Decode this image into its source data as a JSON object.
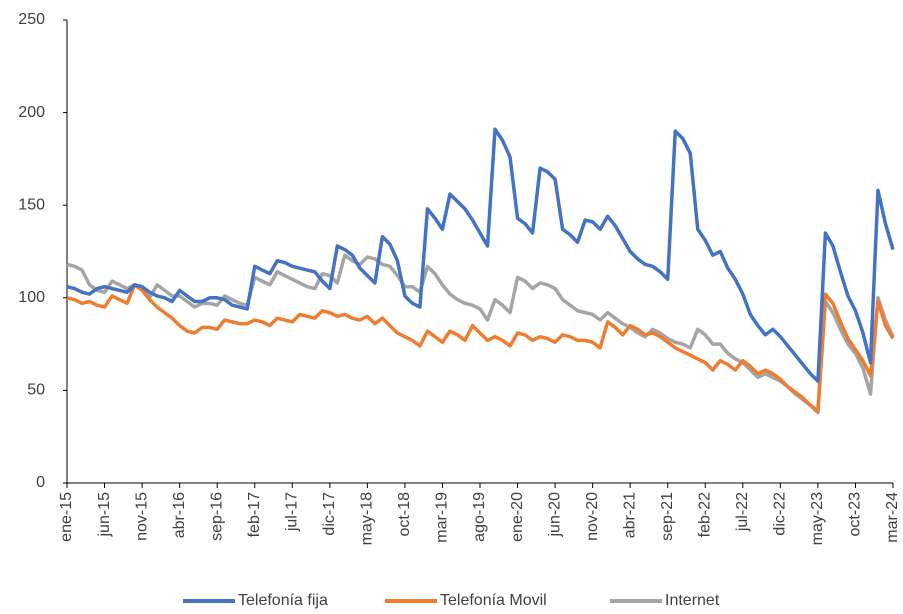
{
  "chart_data": {
    "type": "line",
    "categories": [
      "ene-15",
      null,
      null,
      null,
      null,
      "jun-15",
      null,
      null,
      null,
      null,
      "nov-15",
      null,
      null,
      null,
      null,
      "abr-16",
      null,
      null,
      null,
      null,
      "sep-16",
      null,
      null,
      null,
      null,
      "feb-17",
      null,
      null,
      null,
      null,
      "jul-17",
      null,
      null,
      null,
      null,
      "dic-17",
      null,
      null,
      null,
      null,
      "may-18",
      null,
      null,
      null,
      null,
      "oct-18",
      null,
      null,
      null,
      null,
      "mar-19",
      null,
      null,
      null,
      null,
      "ago-19",
      null,
      null,
      null,
      null,
      "ene-20",
      null,
      null,
      null,
      null,
      "jun-20",
      null,
      null,
      null,
      null,
      "nov-20",
      null,
      null,
      null,
      null,
      "abr-21",
      null,
      null,
      null,
      null,
      "sep-21",
      null,
      null,
      null,
      null,
      "feb-22",
      null,
      null,
      null,
      null,
      "jul-22",
      null,
      null,
      null,
      null,
      "dic-22",
      null,
      null,
      null,
      null,
      "may-23",
      null,
      null,
      null,
      null,
      "oct-23",
      null,
      null,
      null,
      null,
      "mar-24"
    ],
    "series": [
      {
        "name": "Telefonía fija",
        "color": "#4472c4",
        "values": [
          106,
          105,
          103,
          102,
          105,
          106,
          105,
          104,
          103,
          107,
          106,
          103,
          101,
          100,
          98,
          104,
          101,
          98,
          98,
          100,
          100,
          99,
          96,
          95,
          94,
          117,
          115,
          113,
          120,
          119,
          117,
          116,
          115,
          114,
          109,
          105,
          128,
          126,
          123,
          116,
          112,
          108,
          133,
          129,
          120,
          101,
          97,
          95,
          148,
          143,
          137,
          156,
          152,
          148,
          142,
          135,
          128,
          191,
          185,
          176,
          143,
          140,
          135,
          170,
          168,
          164,
          137,
          134,
          130,
          142,
          141,
          137,
          144,
          139,
          132,
          125,
          121,
          118,
          117,
          114,
          110,
          190,
          186,
          178,
          137,
          131,
          123,
          125,
          116,
          110,
          102,
          91,
          85,
          80,
          83,
          79,
          74,
          69,
          64,
          59,
          55,
          135,
          128,
          114,
          101,
          93,
          81,
          65,
          158,
          140,
          126
        ]
      },
      {
        "name": "Telefonía Movil",
        "color": "#ed7d31",
        "values": [
          100,
          99,
          97,
          98,
          96,
          95,
          101,
          99,
          97,
          107,
          104,
          99,
          95,
          92,
          89,
          85,
          82,
          81,
          84,
          84,
          83,
          88,
          87,
          86,
          86,
          88,
          87,
          85,
          89,
          88,
          87,
          91,
          90,
          89,
          93,
          92,
          90,
          91,
          89,
          88,
          90,
          86,
          89,
          85,
          81,
          79,
          77,
          74,
          82,
          79,
          76,
          82,
          80,
          77,
          85,
          81,
          77,
          79,
          77,
          74,
          81,
          80,
          77,
          79,
          78,
          76,
          80,
          79,
          77,
          77,
          76,
          73,
          87,
          84,
          80,
          85,
          83,
          80,
          81,
          79,
          76,
          73,
          71,
          69,
          67,
          65,
          61,
          66,
          64,
          61,
          66,
          63,
          59,
          61,
          59,
          56,
          52,
          49,
          46,
          42,
          39,
          102,
          97,
          87,
          78,
          72,
          66,
          58,
          98,
          85,
          78
        ]
      },
      {
        "name": "Internet",
        "color": "#a5a5a5",
        "values": [
          118,
          117,
          115,
          107,
          104,
          103,
          109,
          107,
          105,
          107,
          105,
          100,
          107,
          104,
          101,
          101,
          98,
          95,
          97,
          97,
          96,
          101,
          99,
          97,
          96,
          111,
          109,
          107,
          114,
          112,
          110,
          108,
          106,
          105,
          113,
          112,
          108,
          123,
          120,
          118,
          122,
          121,
          118,
          117,
          112,
          106,
          106,
          103,
          117,
          113,
          107,
          102,
          99,
          97,
          96,
          94,
          88,
          99,
          96,
          92,
          111,
          109,
          105,
          108,
          107,
          105,
          99,
          96,
          93,
          92,
          91,
          88,
          92,
          89,
          86,
          84,
          81,
          79,
          83,
          81,
          78,
          76,
          75,
          73,
          83,
          80,
          75,
          75,
          70,
          67,
          65,
          61,
          57,
          59,
          57,
          55,
          52,
          48,
          45,
          42,
          38,
          98,
          92,
          83,
          75,
          70,
          62,
          48,
          100,
          88,
          79
        ]
      }
    ],
    "ylim": [
      0,
      250
    ],
    "yticks": [
      0,
      50,
      100,
      150,
      200,
      250
    ],
    "grid": false,
    "legend": "bottom"
  }
}
